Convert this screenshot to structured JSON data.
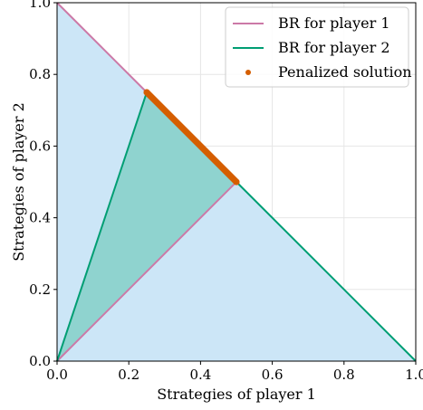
{
  "chart_data": {
    "type": "line",
    "xlabel": "Strategies of player 1",
    "ylabel": "Strategies of player 2",
    "xlim": [
      0.0,
      1.0
    ],
    "ylim": [
      0.0,
      1.0
    ],
    "xticks": [
      "0.0",
      "0.2",
      "0.4",
      "0.6",
      "0.8",
      "1.0"
    ],
    "yticks": [
      "0.0",
      "0.2",
      "0.4",
      "0.6",
      "0.8",
      "1.0"
    ],
    "grid": true,
    "legend_position": "top-right",
    "regions": [
      {
        "role": "feasible-set",
        "color": "#cce6f7",
        "points": [
          [
            0.0,
            0.0
          ],
          [
            1.0,
            0.0
          ],
          [
            0.0,
            1.0
          ]
        ]
      },
      {
        "role": "equilibrium-set",
        "color": "#8fd3cf",
        "points": [
          [
            0.0,
            0.0
          ],
          [
            0.25,
            0.75
          ],
          [
            0.5,
            0.5
          ]
        ]
      }
    ],
    "series": [
      {
        "name": "BR for player 1",
        "color": "#cc79a7",
        "segments": [
          [
            [
              0.0,
              1.0
            ],
            [
              0.25,
              0.75
            ]
          ],
          [
            [
              0.0,
              0.0
            ],
            [
              0.5,
              0.5
            ]
          ]
        ]
      },
      {
        "name": "BR for player 2",
        "color": "#009e73",
        "segments": [
          [
            [
              0.0,
              0.0
            ],
            [
              0.25,
              0.75
            ]
          ],
          [
            [
              0.5,
              0.5
            ],
            [
              1.0,
              0.0
            ]
          ]
        ]
      },
      {
        "name": "Penalized solution",
        "color": "#d55e00",
        "marker": "dot",
        "segments": [
          [
            [
              0.25,
              0.75
            ],
            [
              0.5,
              0.5
            ]
          ]
        ]
      }
    ]
  }
}
